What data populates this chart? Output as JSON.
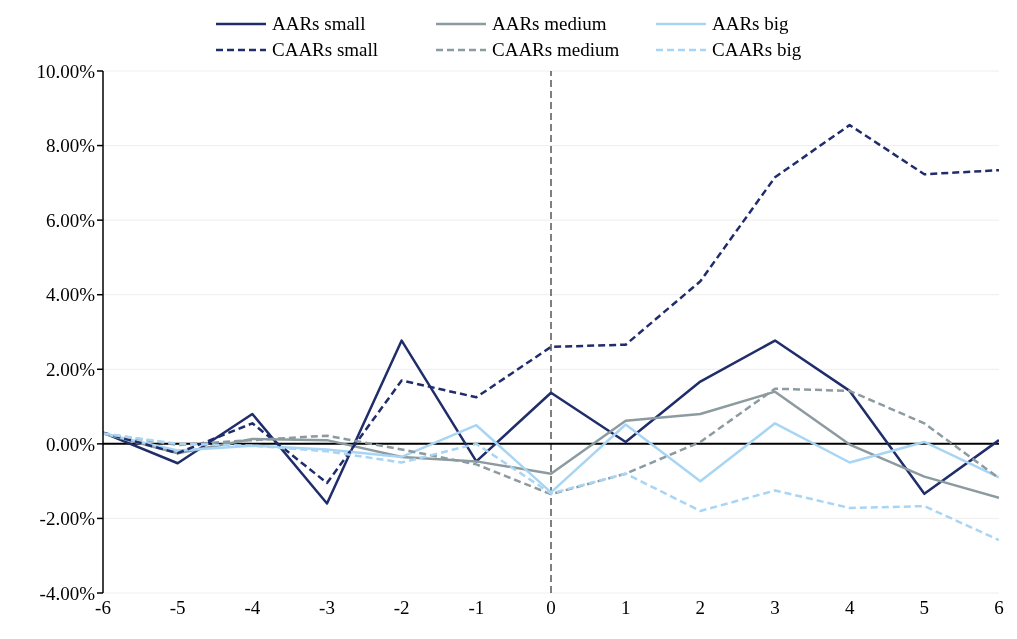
{
  "chart_data": {
    "type": "line",
    "x": [
      -6,
      -5,
      -4,
      -3,
      -2,
      -1,
      0,
      1,
      2,
      3,
      4,
      5,
      6
    ],
    "xlim": [
      -6,
      6
    ],
    "xticks": [
      -6,
      -5,
      -4,
      -3,
      -2,
      -1,
      0,
      1,
      2,
      3,
      4,
      5,
      6
    ],
    "ylim": [
      -4,
      10
    ],
    "yticks": [
      {
        "value": -4,
        "label": "-4.00%"
      },
      {
        "value": -2,
        "label": "-2.00%"
      },
      {
        "value": 0,
        "label": "0.00%"
      },
      {
        "value": 2,
        "label": "2.00%"
      },
      {
        "value": 4,
        "label": "4.00%"
      },
      {
        "value": 6,
        "label": "6.00%"
      },
      {
        "value": 8,
        "label": "8.00%"
      },
      {
        "value": 10,
        "label": "10.00%"
      }
    ],
    "grid": "y",
    "legend": "top",
    "marker": "none",
    "ref_lines": [
      {
        "axis": "x",
        "value": 0,
        "color": "#000000",
        "line_style": "dashed"
      }
    ],
    "series": [
      {
        "name": "AARs small",
        "color": "#1f2d6b",
        "line_style": "solid",
        "values": [
          0.3,
          -0.52,
          0.8,
          -1.6,
          2.77,
          -0.47,
          1.37,
          0.05,
          1.67,
          2.77,
          1.42,
          -1.34,
          0.1
        ]
      },
      {
        "name": "AARs medium",
        "color": "#8c9ba0",
        "line_style": "solid",
        "values": [
          0.28,
          -0.25,
          0.13,
          0.1,
          -0.35,
          -0.47,
          -0.8,
          0.62,
          0.8,
          1.4,
          -0.02,
          -0.88,
          -1.45
        ]
      },
      {
        "name": "AARs big",
        "color": "#a9d5f5",
        "line_style": "solid",
        "values": [
          0.28,
          -0.18,
          -0.05,
          -0.15,
          -0.35,
          0.5,
          -1.3,
          0.52,
          -1.0,
          0.55,
          -0.5,
          0.05,
          -0.9
        ]
      },
      {
        "name": "CAARs small",
        "color": "#1f2d6b",
        "line_style": "dashed",
        "values": [
          0.3,
          -0.25,
          0.55,
          -1.05,
          1.7,
          1.25,
          2.6,
          2.66,
          4.36,
          7.15,
          8.55,
          7.23,
          7.34
        ]
      },
      {
        "name": "CAARs medium",
        "color": "#8c9ba0",
        "line_style": "dashed",
        "values": [
          0.28,
          -0.03,
          0.1,
          0.22,
          -0.15,
          -0.55,
          -1.35,
          -0.8,
          0.05,
          1.48,
          1.42,
          0.55,
          -0.92
        ]
      },
      {
        "name": "CAARs big",
        "color": "#a9d5f5",
        "line_style": "dashed",
        "values": [
          0.28,
          0,
          -0.05,
          -0.2,
          -0.5,
          0,
          -1.33,
          -0.8,
          -1.8,
          -1.25,
          -1.72,
          -1.67,
          -2.58
        ]
      }
    ]
  }
}
